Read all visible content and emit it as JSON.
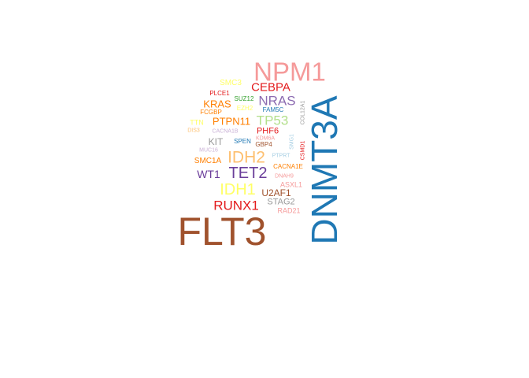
{
  "word_cloud": {
    "words": [
      {
        "text": "FLT3",
        "color": "#a0522d",
        "weight": 50
      },
      {
        "text": "DNMT3A",
        "color": "#1f78b4",
        "weight": 44,
        "vertical": true
      },
      {
        "text": "NPM1",
        "color": "#f59a9a",
        "weight": 33
      },
      {
        "text": "IDH2",
        "color": "#fdbf6f",
        "weight": 20
      },
      {
        "text": "TET2",
        "color": "#6a3d9a",
        "weight": 19
      },
      {
        "text": "IDH1",
        "color": "#ffff66",
        "weight": 18
      },
      {
        "text": "RUNX1",
        "color": "#e31a1c",
        "weight": 16
      },
      {
        "text": "TP53",
        "color": "#b2df8a",
        "weight": 16
      },
      {
        "text": "NRAS",
        "color": "#8c6bb1",
        "weight": 16
      },
      {
        "text": "CEBPA",
        "color": "#e31a1c",
        "weight": 15
      },
      {
        "text": "PTPN11",
        "color": "#ff7f00",
        "weight": 12
      },
      {
        "text": "KRAS",
        "color": "#ff7f00",
        "weight": 12
      },
      {
        "text": "WT1",
        "color": "#6a3d9a",
        "weight": 12
      },
      {
        "text": "KIT",
        "color": "#999999",
        "weight": 11
      },
      {
        "text": "U2AF1",
        "color": "#a0522d",
        "weight": 11
      },
      {
        "text": "STAG2",
        "color": "#999999",
        "weight": 11
      },
      {
        "text": "SMC3",
        "color": "#ffff66",
        "weight": 10
      },
      {
        "text": "PHF6",
        "color": "#e31a1c",
        "weight": 10
      },
      {
        "text": "SMC1A",
        "color": "#ff7f00",
        "weight": 10
      },
      {
        "text": "TTN",
        "color": "#ffff66",
        "weight": 9
      },
      {
        "text": "ASXL1",
        "color": "#f59a9a",
        "weight": 9
      },
      {
        "text": "RAD21",
        "color": "#f59a9a",
        "weight": 9
      },
      {
        "text": "PLCE1",
        "color": "#e31a1c",
        "weight": 8
      },
      {
        "text": "SUZ12",
        "color": "#33a02c",
        "weight": 8
      },
      {
        "text": "FCGBP",
        "color": "#ff7f00",
        "weight": 8
      },
      {
        "text": "EZH2",
        "color": "#ffff66",
        "weight": 8
      },
      {
        "text": "FAM5C",
        "color": "#1f78b4",
        "weight": 8
      },
      {
        "text": "SPEN",
        "color": "#1f78b4",
        "weight": 8
      },
      {
        "text": "GBP4",
        "color": "#a0522d",
        "weight": 8
      },
      {
        "text": "CACNA1E",
        "color": "#ff7f00",
        "weight": 8
      },
      {
        "text": "COL12A1",
        "color": "#999999",
        "weight": 7,
        "vertical": true
      },
      {
        "text": "DIS3",
        "color": "#fdbf6f",
        "weight": 7
      },
      {
        "text": "CACNA1B",
        "color": "#cab2d6",
        "weight": 7
      },
      {
        "text": "KDM6A",
        "color": "#f59a9a",
        "weight": 7
      },
      {
        "text": "MUC16",
        "color": "#cab2d6",
        "weight": 7
      },
      {
        "text": "SMG1",
        "color": "#a6cee3",
        "weight": 7,
        "vertical": true
      },
      {
        "text": "CSMD1",
        "color": "#e31a1c",
        "weight": 7,
        "vertical": true
      },
      {
        "text": "PTPRT",
        "color": "#a6cee3",
        "weight": 7
      },
      {
        "text": "DNAH9",
        "color": "#f59a9a",
        "weight": 7
      }
    ]
  }
}
